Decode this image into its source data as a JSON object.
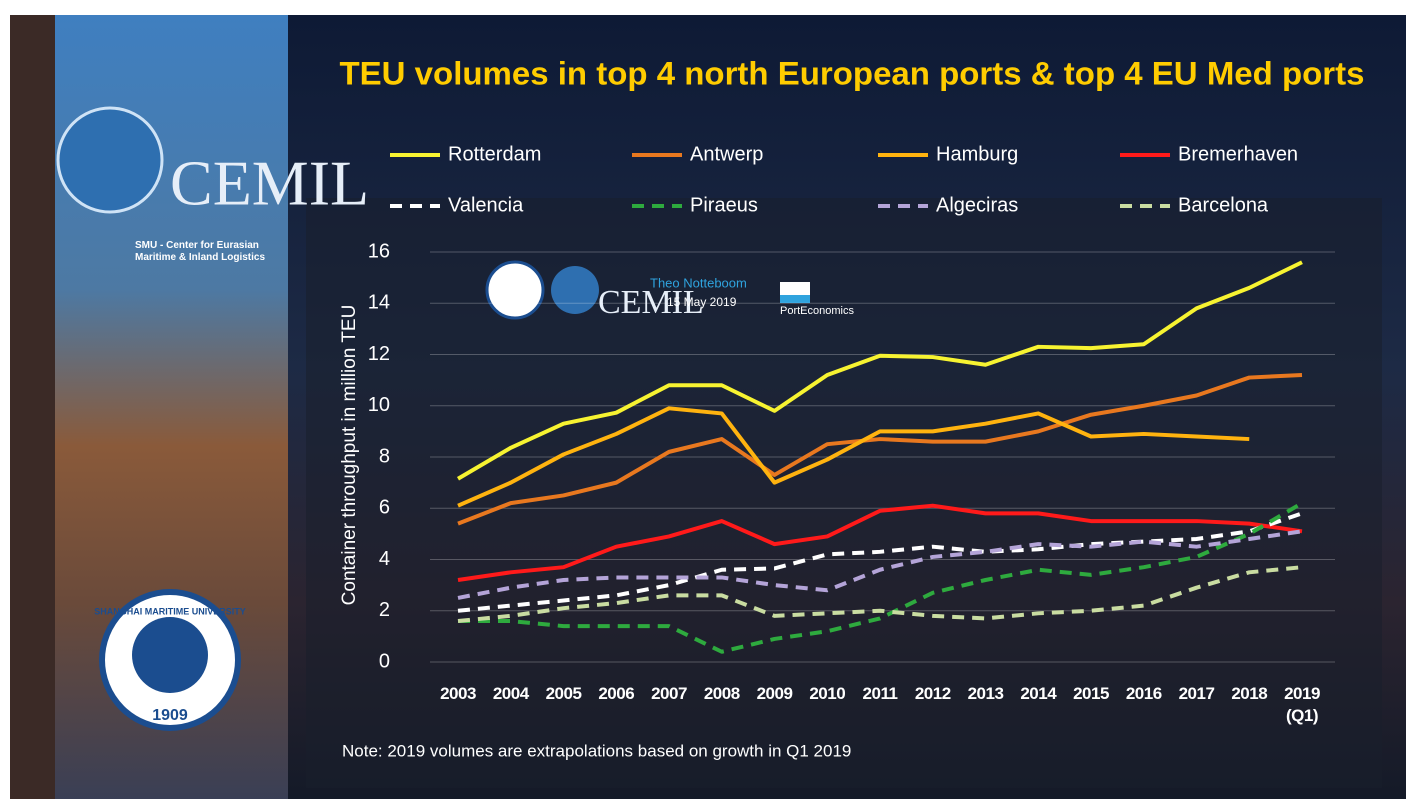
{
  "chart_data": {
    "type": "line",
    "title": "TEU volumes in top 4 north European ports & top 4 EU Med ports",
    "y_label": "Container throughput in million TEU",
    "note": "Note: 2019 volumes are extrapolations based on growth in Q1 2019",
    "categories": [
      "2003",
      "2004",
      "2005",
      "2006",
      "2007",
      "2008",
      "2009",
      "2010",
      "2011",
      "2012",
      "2013",
      "2014",
      "2015",
      "2016",
      "2017",
      "2018",
      "2019\n(Q1)"
    ],
    "ylim": [
      0,
      16
    ],
    "yticks": [
      0,
      2,
      4,
      6,
      8,
      10,
      12,
      14,
      16
    ],
    "grid": true,
    "series": [
      {
        "name": "Rotterdam",
        "color": "#f7f331",
        "dash": false,
        "values": [
          7.15,
          8.36,
          9.3,
          9.73,
          10.8,
          10.8,
          9.8,
          11.2,
          11.95,
          11.9,
          11.6,
          12.3,
          12.25,
          12.4,
          13.8,
          14.6,
          15.6
        ]
      },
      {
        "name": "Antwerp",
        "color": "#e8781f",
        "dash": false,
        "values": [
          5.4,
          6.2,
          6.5,
          7.0,
          8.2,
          8.7,
          7.3,
          8.5,
          8.7,
          8.6,
          8.6,
          9.0,
          9.65,
          10.0,
          10.4,
          11.1,
          11.2
        ]
      },
      {
        "name": "Hamburg",
        "color": "#ffb30f",
        "dash": false,
        "values": [
          6.1,
          7.0,
          8.1,
          8.9,
          9.9,
          9.7,
          7.0,
          7.9,
          9.0,
          9.0,
          9.3,
          9.7,
          8.8,
          8.9,
          8.8,
          8.7,
          null
        ]
      },
      {
        "name": "Bremerhaven",
        "color": "#ff1a1a",
        "dash": false,
        "values": [
          3.2,
          3.5,
          3.7,
          4.5,
          4.9,
          5.5,
          4.6,
          4.9,
          5.9,
          6.1,
          5.8,
          5.8,
          5.5,
          5.5,
          5.5,
          5.4,
          5.1
        ]
      },
      {
        "name": "Valencia",
        "color": "#ffffff",
        "dash": true,
        "values": [
          2.0,
          2.2,
          2.4,
          2.6,
          3.0,
          3.6,
          3.65,
          4.2,
          4.3,
          4.5,
          4.3,
          4.4,
          4.6,
          4.7,
          4.8,
          5.1,
          5.8
        ]
      },
      {
        "name": "Piraeus",
        "color": "#2eaa3e",
        "dash": true,
        "values": [
          1.6,
          1.6,
          1.4,
          1.4,
          1.4,
          0.4,
          0.9,
          1.2,
          1.7,
          2.7,
          3.2,
          3.6,
          3.4,
          3.7,
          4.1,
          5.0,
          6.2
        ]
      },
      {
        "name": "Algeciras",
        "color": "#b4a4d8",
        "dash": true,
        "values": [
          2.5,
          2.9,
          3.2,
          3.3,
          3.3,
          3.3,
          3.0,
          2.8,
          3.6,
          4.1,
          4.3,
          4.6,
          4.5,
          4.7,
          4.5,
          4.8,
          5.1
        ]
      },
      {
        "name": "Barcelona",
        "color": "#c9dca1",
        "dash": true,
        "values": [
          1.6,
          1.8,
          2.1,
          2.3,
          2.6,
          2.6,
          1.8,
          1.9,
          2.0,
          1.8,
          1.7,
          1.9,
          2.0,
          2.2,
          2.9,
          3.5,
          3.7
        ]
      }
    ]
  },
  "branding": {
    "logo": "CEMIL",
    "center": "SMU - Center for Eurasian Maritime & Inland Logistics",
    "university": "SHANGHAI MARITIME UNIVERSITY",
    "founded": "1909",
    "author": "Theo Notteboom",
    "date": "15 May 2019",
    "site": "PortEconomics"
  }
}
